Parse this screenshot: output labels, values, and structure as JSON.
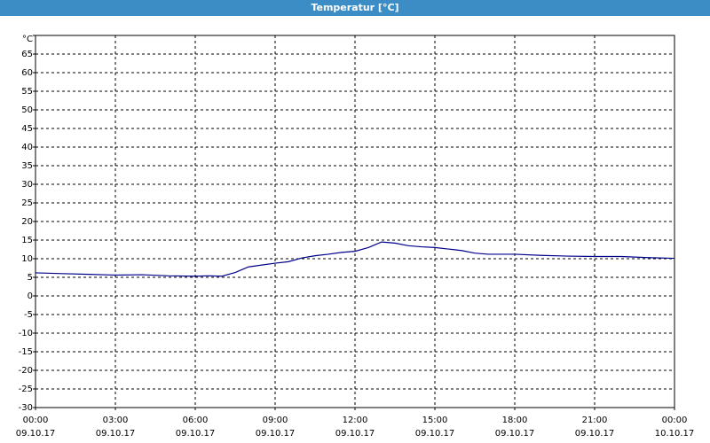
{
  "chart_data": {
    "type": "line",
    "title": "Temperatur [°C]",
    "x": [
      0,
      1,
      2,
      3,
      4,
      5,
      6,
      6.5,
      7,
      7.5,
      8,
      8.5,
      9,
      9.5,
      10,
      10.5,
      11,
      11.5,
      12,
      12.5,
      13,
      13.5,
      14,
      14.5,
      15,
      15.5,
      16,
      16.5,
      17,
      18,
      19,
      20,
      21,
      22,
      23,
      24
    ],
    "series": [
      {
        "name": "Temperatur",
        "color": "#00008b",
        "values": [
          6.2,
          6,
          5.8,
          5.6,
          5.7,
          5.4,
          5.3,
          5.4,
          5.3,
          6.3,
          7.8,
          8.3,
          8.8,
          9.2,
          10.2,
          10.8,
          11.2,
          11.7,
          12,
          13,
          14.5,
          14.2,
          13.5,
          13.2,
          13,
          12.6,
          12.2,
          11.5,
          11.2,
          11.2,
          10.9,
          10.7,
          10.6,
          10.6,
          10.3,
          10.1
        ]
      }
    ],
    "xlim": [
      0,
      24
    ],
    "xticks": [
      {
        "value": 0,
        "label": "00:00",
        "date": "09.10.17"
      },
      {
        "value": 3,
        "label": "03:00",
        "date": "09.10.17"
      },
      {
        "value": 6,
        "label": "06:00",
        "date": "09.10.17"
      },
      {
        "value": 9,
        "label": "09:00",
        "date": "09.10.17"
      },
      {
        "value": 12,
        "label": "12:00",
        "date": "09.10.17"
      },
      {
        "value": 15,
        "label": "15:00",
        "date": "09.10.17"
      },
      {
        "value": 18,
        "label": "18:00",
        "date": "09.10.17"
      },
      {
        "value": 21,
        "label": "21:00",
        "date": "09.10.17"
      },
      {
        "value": 24,
        "label": "00:00",
        "date": "10.10.17"
      }
    ],
    "ylim": [
      -30,
      70
    ],
    "yticks": [
      -30,
      -25,
      -20,
      -15,
      -10,
      -5,
      0,
      5,
      10,
      15,
      20,
      25,
      30,
      35,
      40,
      45,
      50,
      55,
      60,
      65,
      {
        "value": 70,
        "label": "°C"
      }
    ],
    "grid": true
  }
}
